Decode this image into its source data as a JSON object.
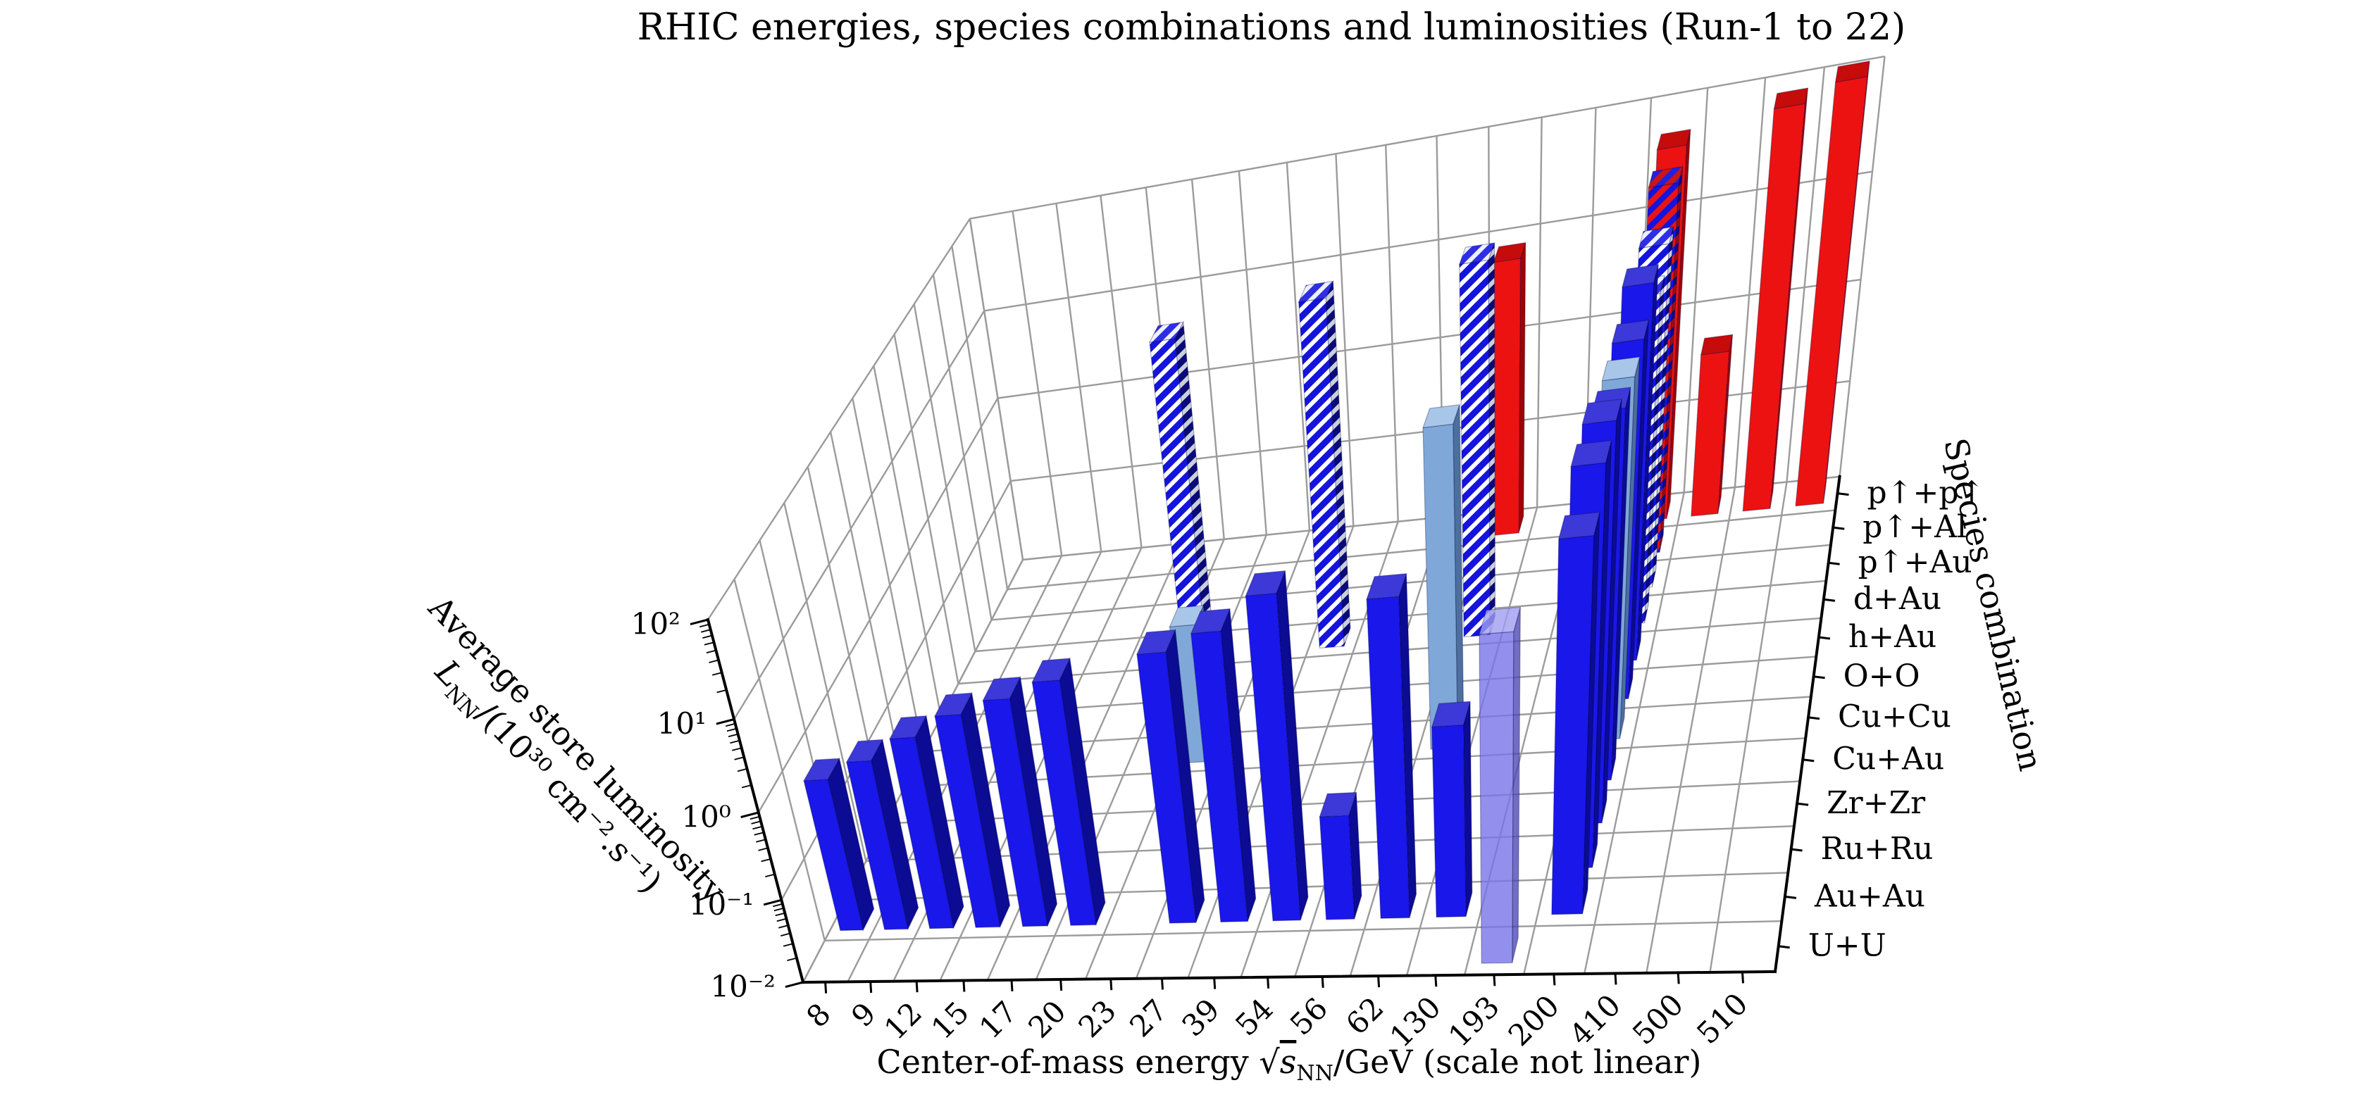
{
  "chart_data": {
    "type": "bar3d",
    "title": "RHIC energies, species combinations and luminosities (Run-1 to 22)",
    "xlabel": {
      "pre": "Center-of-mass energy √",
      "arg": "s",
      "sub": "NN",
      "post": "/GeV (scale not linear)"
    },
    "ylabel": "Species combination",
    "zlabel": {
      "line1": "Average store luminosity",
      "line2_main": "L",
      "line2_sub": "NN",
      "line2_rest": "/(10³⁰ cm⁻².s⁻¹)"
    },
    "energies": [
      "8",
      "9",
      "12",
      "15",
      "17",
      "20",
      "23",
      "27",
      "39",
      "54",
      "56",
      "62",
      "130",
      "193",
      "200",
      "410",
      "500",
      "510"
    ],
    "z_ticks": [
      "10²",
      "10¹",
      "10⁰",
      "10⁻¹",
      "10⁻²"
    ],
    "zlim": [
      0.01,
      100
    ],
    "grid": true,
    "species_front_to_back": [
      {
        "label": "U+U",
        "style": "translucent-blue",
        "bars": {
          "193": 15
        }
      },
      {
        "label": "Au+Au",
        "style": "solid-blue",
        "bars": {
          "8": 0.6,
          "9": 0.9,
          "12": 1.5,
          "15": 2.4,
          "17": 3.2,
          "20": 4.5,
          "27": 7,
          "39": 10,
          "54": 20,
          "56": 0.13,
          "62": 15,
          "130": 0.9,
          "200": 35
        }
      },
      {
        "label": "Ru+Ru",
        "style": "solid-blue",
        "bars": {
          "200": 60
        }
      },
      {
        "label": "Zr+Zr",
        "style": "solid-blue",
        "bars": {
          "200": 60
        }
      },
      {
        "label": "Cu+Au",
        "style": "solid-blue",
        "bars": {
          "200": 35
        }
      },
      {
        "label": "Cu+Cu",
        "style": "light-blue",
        "bars": {
          "23": 0.35,
          "62": 18,
          "200": 30
        }
      },
      {
        "label": "O+O",
        "style": "solid-blue",
        "bars": {
          "200": 30
        }
      },
      {
        "label": "h+Au",
        "style": "solid-blue",
        "bars": {
          "200": 45
        }
      },
      {
        "label": "d+Au",
        "style": "hatch-blue",
        "bars": {
          "20": 30,
          "39": 45,
          "62": 60,
          "200": 18
        }
      },
      {
        "label": "p↑+Au",
        "style": "hatch-blue",
        "bars": {
          "200": 25
        }
      },
      {
        "label": "p↑+Al",
        "style": "hatch-red-blue",
        "bars": {
          "200": 45
        }
      },
      {
        "label": "p↑+p↑",
        "style": "red",
        "bars": {
          "62": 8,
          "200": 52,
          "410": 0.5,
          "500": 80,
          "510": 110
        }
      }
    ],
    "colors": {
      "solid_blue": "#1a17ea",
      "light_blue": "#7fa8d9",
      "red": "#ec1212",
      "translucent_blue": "#7874e8",
      "hatch_stripe_blue": "#1414dc",
      "hatch_bg_white": "#ffffff",
      "hatch_stripe_red": "#e81414",
      "grid": "#9b9b9b",
      "background": "#ffffff"
    }
  }
}
